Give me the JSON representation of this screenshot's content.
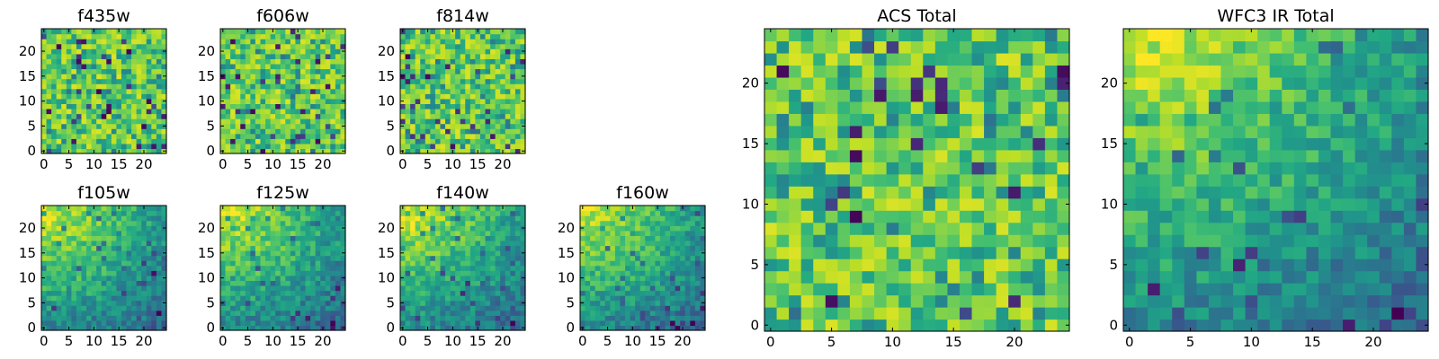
{
  "chart_data": [
    {
      "type": "heatmap",
      "title": "f435w",
      "grid_size": 25,
      "colormap": "viridis",
      "xticks": [
        0,
        5,
        10,
        15,
        20
      ],
      "yticks": [
        0,
        5,
        10,
        15,
        20
      ],
      "xlim": [
        0,
        24
      ],
      "ylim": [
        0,
        24
      ],
      "pattern": "noise"
    },
    {
      "type": "heatmap",
      "title": "f606w",
      "grid_size": 25,
      "colormap": "viridis",
      "xticks": [
        0,
        5,
        10,
        15,
        20
      ],
      "yticks": [
        0,
        5,
        10,
        15,
        20
      ],
      "xlim": [
        0,
        24
      ],
      "ylim": [
        0,
        24
      ],
      "pattern": "noise"
    },
    {
      "type": "heatmap",
      "title": "f814w",
      "grid_size": 25,
      "colormap": "viridis",
      "xticks": [
        0,
        5,
        10,
        15,
        20
      ],
      "yticks": [
        0,
        5,
        10,
        15,
        20
      ],
      "xlim": [
        0,
        24
      ],
      "ylim": [
        0,
        24
      ],
      "pattern": "noise"
    },
    {
      "type": "heatmap",
      "title": "f105w",
      "grid_size": 25,
      "colormap": "viridis",
      "xticks": [
        0,
        5,
        10,
        15,
        20
      ],
      "yticks": [
        0,
        5,
        10,
        15,
        20
      ],
      "xlim": [
        0,
        24
      ],
      "ylim": [
        0,
        24
      ],
      "pattern": "gradient"
    },
    {
      "type": "heatmap",
      "title": "f125w",
      "grid_size": 25,
      "colormap": "viridis",
      "xticks": [
        0,
        5,
        10,
        15,
        20
      ],
      "yticks": [
        0,
        5,
        10,
        15,
        20
      ],
      "xlim": [
        0,
        24
      ],
      "ylim": [
        0,
        24
      ],
      "pattern": "gradient"
    },
    {
      "type": "heatmap",
      "title": "f140w",
      "grid_size": 25,
      "colormap": "viridis",
      "xticks": [
        0,
        5,
        10,
        15,
        20
      ],
      "yticks": [
        0,
        5,
        10,
        15,
        20
      ],
      "xlim": [
        0,
        24
      ],
      "ylim": [
        0,
        24
      ],
      "pattern": "gradient"
    },
    {
      "type": "heatmap",
      "title": "f160w",
      "grid_size": 25,
      "colormap": "viridis",
      "xticks": [
        0,
        5,
        10,
        15,
        20
      ],
      "yticks": [
        0,
        5,
        10,
        15,
        20
      ],
      "xlim": [
        0,
        24
      ],
      "ylim": [
        0,
        24
      ],
      "pattern": "gradient"
    },
    {
      "type": "heatmap",
      "title": "ACS Total",
      "grid_size": 25,
      "colormap": "viridis",
      "xticks": [
        0,
        5,
        10,
        15,
        20
      ],
      "yticks": [
        0,
        5,
        10,
        15,
        20
      ],
      "xlim": [
        0,
        24
      ],
      "ylim": [
        0,
        24
      ],
      "pattern": "noise"
    },
    {
      "type": "heatmap",
      "title": "WFC3 IR Total",
      "grid_size": 25,
      "colormap": "viridis",
      "xticks": [
        0,
        5,
        10,
        15,
        20
      ],
      "yticks": [
        0,
        5,
        10,
        15,
        20
      ],
      "xlim": [
        0,
        24
      ],
      "ylim": [
        0,
        24
      ],
      "pattern": "gradient"
    }
  ]
}
